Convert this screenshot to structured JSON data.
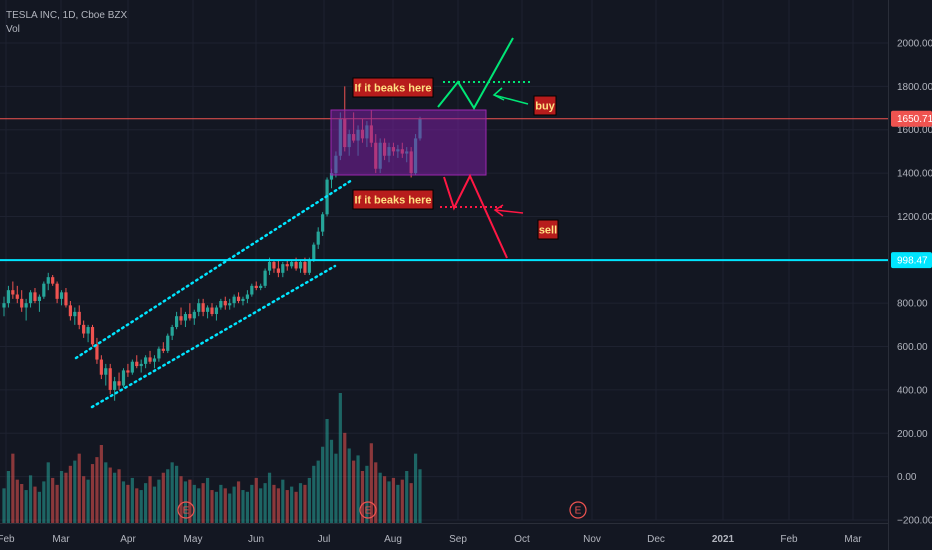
{
  "header": {
    "symbol_line": "TESLA INC, 1D, Cboe BZX",
    "volume_label": "Vol"
  },
  "chart_data": {
    "type": "candlestick",
    "title": "TESLA INC, 1D, Cboe BZX",
    "ylim": [
      -200,
      2200
    ],
    "y_ticks": [
      2000,
      1800,
      1600,
      1400,
      1200,
      1000,
      800,
      600,
      400,
      200,
      0,
      -200
    ],
    "y_tick_labels": [
      "2000.00",
      "1800.00",
      "1600.00",
      "1400.00",
      "1200.00",
      "1000.00",
      "800.00",
      "600.00",
      "400.00",
      "200.00",
      "0.00",
      "−200.00"
    ],
    "x_tick_labels": [
      "Feb",
      "Mar",
      "Apr",
      "May",
      "Jun",
      "Jul",
      "Aug",
      "Sep",
      "Oct",
      "Nov",
      "Dec",
      "2021",
      "Feb",
      "Mar"
    ],
    "price_tags": [
      {
        "value": 1650.71,
        "label": "1650.71",
        "color": "#ef5350"
      },
      {
        "value": 998.47,
        "label": "998.47",
        "color": "#00e5ff"
      }
    ],
    "horizontal_lines": [
      {
        "value": 1650.71,
        "color": "#ef5350"
      },
      {
        "value": 998.47,
        "color": "#00e5ff"
      }
    ],
    "ohlc_sample": [
      {
        "o": 780,
        "h": 830,
        "l": 740,
        "c": 800
      },
      {
        "o": 800,
        "h": 880,
        "l": 780,
        "c": 860
      },
      {
        "o": 860,
        "h": 900,
        "l": 820,
        "c": 840
      },
      {
        "o": 840,
        "h": 880,
        "l": 800,
        "c": 820
      },
      {
        "o": 820,
        "h": 860,
        "l": 760,
        "c": 780
      },
      {
        "o": 780,
        "h": 820,
        "l": 720,
        "c": 800
      },
      {
        "o": 800,
        "h": 860,
        "l": 780,
        "c": 850
      },
      {
        "o": 850,
        "h": 870,
        "l": 800,
        "c": 810
      },
      {
        "o": 810,
        "h": 840,
        "l": 760,
        "c": 830
      },
      {
        "o": 830,
        "h": 900,
        "l": 820,
        "c": 890
      },
      {
        "o": 890,
        "h": 940,
        "l": 860,
        "c": 920
      },
      {
        "o": 920,
        "h": 930,
        "l": 880,
        "c": 890
      },
      {
        "o": 890,
        "h": 900,
        "l": 800,
        "c": 820
      },
      {
        "o": 820,
        "h": 860,
        "l": 790,
        "c": 850
      },
      {
        "o": 850,
        "h": 870,
        "l": 780,
        "c": 790
      },
      {
        "o": 790,
        "h": 810,
        "l": 720,
        "c": 740
      },
      {
        "o": 740,
        "h": 780,
        "l": 700,
        "c": 760
      },
      {
        "o": 760,
        "h": 790,
        "l": 680,
        "c": 700
      },
      {
        "o": 700,
        "h": 720,
        "l": 640,
        "c": 660
      },
      {
        "o": 660,
        "h": 700,
        "l": 620,
        "c": 690
      },
      {
        "o": 690,
        "h": 700,
        "l": 600,
        "c": 610
      },
      {
        "o": 610,
        "h": 640,
        "l": 520,
        "c": 540
      },
      {
        "o": 540,
        "h": 560,
        "l": 450,
        "c": 470
      },
      {
        "o": 470,
        "h": 520,
        "l": 420,
        "c": 500
      },
      {
        "o": 500,
        "h": 520,
        "l": 380,
        "c": 400
      },
      {
        "o": 400,
        "h": 460,
        "l": 350,
        "c": 440
      },
      {
        "o": 440,
        "h": 480,
        "l": 400,
        "c": 420
      },
      {
        "o": 420,
        "h": 500,
        "l": 410,
        "c": 490
      },
      {
        "o": 490,
        "h": 520,
        "l": 460,
        "c": 480
      },
      {
        "o": 480,
        "h": 540,
        "l": 470,
        "c": 530
      },
      {
        "o": 530,
        "h": 560,
        "l": 500,
        "c": 510
      },
      {
        "o": 510,
        "h": 540,
        "l": 480,
        "c": 520
      },
      {
        "o": 520,
        "h": 560,
        "l": 500,
        "c": 550
      },
      {
        "o": 550,
        "h": 580,
        "l": 520,
        "c": 530
      },
      {
        "o": 530,
        "h": 560,
        "l": 500,
        "c": 545
      },
      {
        "o": 545,
        "h": 600,
        "l": 530,
        "c": 590
      },
      {
        "o": 590,
        "h": 620,
        "l": 570,
        "c": 580
      },
      {
        "o": 580,
        "h": 660,
        "l": 570,
        "c": 650
      },
      {
        "o": 650,
        "h": 700,
        "l": 630,
        "c": 690
      },
      {
        "o": 690,
        "h": 760,
        "l": 680,
        "c": 740
      },
      {
        "o": 740,
        "h": 780,
        "l": 700,
        "c": 720
      },
      {
        "o": 720,
        "h": 760,
        "l": 690,
        "c": 750
      },
      {
        "o": 750,
        "h": 800,
        "l": 720,
        "c": 730
      },
      {
        "o": 730,
        "h": 770,
        "l": 700,
        "c": 760
      },
      {
        "o": 760,
        "h": 820,
        "l": 740,
        "c": 800
      },
      {
        "o": 800,
        "h": 820,
        "l": 740,
        "c": 760
      },
      {
        "o": 760,
        "h": 790,
        "l": 730,
        "c": 780
      },
      {
        "o": 780,
        "h": 800,
        "l": 740,
        "c": 750
      },
      {
        "o": 750,
        "h": 790,
        "l": 720,
        "c": 780
      },
      {
        "o": 780,
        "h": 820,
        "l": 770,
        "c": 810
      },
      {
        "o": 810,
        "h": 830,
        "l": 770,
        "c": 790
      },
      {
        "o": 790,
        "h": 820,
        "l": 770,
        "c": 800
      },
      {
        "o": 800,
        "h": 840,
        "l": 780,
        "c": 830
      },
      {
        "o": 830,
        "h": 850,
        "l": 800,
        "c": 810
      },
      {
        "o": 810,
        "h": 830,
        "l": 790,
        "c": 820
      },
      {
        "o": 820,
        "h": 860,
        "l": 800,
        "c": 840
      },
      {
        "o": 840,
        "h": 890,
        "l": 830,
        "c": 880
      },
      {
        "o": 880,
        "h": 900,
        "l": 860,
        "c": 870
      },
      {
        "o": 870,
        "h": 890,
        "l": 860,
        "c": 880
      },
      {
        "o": 880,
        "h": 960,
        "l": 870,
        "c": 950
      },
      {
        "o": 950,
        "h": 1010,
        "l": 930,
        "c": 990
      },
      {
        "o": 990,
        "h": 1000,
        "l": 940,
        "c": 960
      },
      {
        "o": 960,
        "h": 1000,
        "l": 920,
        "c": 940
      },
      {
        "o": 940,
        "h": 990,
        "l": 920,
        "c": 980
      },
      {
        "o": 980,
        "h": 1000,
        "l": 950,
        "c": 970
      },
      {
        "o": 970,
        "h": 1000,
        "l": 960,
        "c": 990
      },
      {
        "o": 990,
        "h": 1010,
        "l": 950,
        "c": 960
      },
      {
        "o": 960,
        "h": 1000,
        "l": 940,
        "c": 990
      },
      {
        "o": 990,
        "h": 1010,
        "l": 930,
        "c": 940
      },
      {
        "o": 940,
        "h": 1010,
        "l": 930,
        "c": 1000
      },
      {
        "o": 1000,
        "h": 1080,
        "l": 990,
        "c": 1070
      },
      {
        "o": 1070,
        "h": 1150,
        "l": 1050,
        "c": 1130
      },
      {
        "o": 1130,
        "h": 1220,
        "l": 1110,
        "c": 1210
      },
      {
        "o": 1210,
        "h": 1380,
        "l": 1200,
        "c": 1370
      },
      {
        "o": 1370,
        "h": 1420,
        "l": 1330,
        "c": 1400
      },
      {
        "o": 1400,
        "h": 1500,
        "l": 1380,
        "c": 1480
      },
      {
        "o": 1480,
        "h": 1680,
        "l": 1460,
        "c": 1650
      },
      {
        "o": 1650,
        "h": 1800,
        "l": 1500,
        "c": 1520
      },
      {
        "o": 1520,
        "h": 1600,
        "l": 1480,
        "c": 1580
      },
      {
        "o": 1580,
        "h": 1680,
        "l": 1540,
        "c": 1550
      },
      {
        "o": 1550,
        "h": 1620,
        "l": 1480,
        "c": 1600
      },
      {
        "o": 1600,
        "h": 1650,
        "l": 1540,
        "c": 1560
      },
      {
        "o": 1560,
        "h": 1640,
        "l": 1520,
        "c": 1620
      },
      {
        "o": 1620,
        "h": 1690,
        "l": 1520,
        "c": 1540
      },
      {
        "o": 1540,
        "h": 1580,
        "l": 1400,
        "c": 1420
      },
      {
        "o": 1420,
        "h": 1560,
        "l": 1400,
        "c": 1540
      },
      {
        "o": 1540,
        "h": 1560,
        "l": 1460,
        "c": 1480
      },
      {
        "o": 1480,
        "h": 1540,
        "l": 1450,
        "c": 1520
      },
      {
        "o": 1520,
        "h": 1540,
        "l": 1480,
        "c": 1500
      },
      {
        "o": 1500,
        "h": 1530,
        "l": 1470,
        "c": 1510
      },
      {
        "o": 1510,
        "h": 1540,
        "l": 1470,
        "c": 1490
      },
      {
        "o": 1490,
        "h": 1520,
        "l": 1450,
        "c": 1500
      },
      {
        "o": 1500,
        "h": 1520,
        "l": 1380,
        "c": 1400
      },
      {
        "o": 1400,
        "h": 1580,
        "l": 1390,
        "c": 1560
      },
      {
        "o": 1560,
        "h": 1660,
        "l": 1550,
        "c": 1650
      }
    ],
    "volume_sample": [
      40,
      60,
      80,
      50,
      45,
      38,
      55,
      42,
      36,
      48,
      70,
      52,
      44,
      60,
      58,
      66,
      72,
      80,
      54,
      50,
      68,
      76,
      90,
      70,
      64,
      58,
      62,
      48,
      44,
      52,
      40,
      38,
      46,
      54,
      42,
      50,
      58,
      62,
      70,
      66,
      54,
      48,
      50,
      44,
      40,
      46,
      52,
      38,
      36,
      44,
      40,
      34,
      42,
      48,
      38,
      36,
      44,
      52,
      40,
      46,
      58,
      44,
      40,
      50,
      38,
      42,
      36,
      46,
      44,
      52,
      66,
      72,
      88,
      120,
      96,
      80,
      150,
      104,
      86,
      72,
      78,
      60,
      66,
      92,
      70,
      58,
      54,
      48,
      52,
      44,
      50,
      60,
      46,
      80,
      62
    ],
    "annotations": [
      {
        "text": "If it beaks here",
        "price": 1800,
        "side": "upper"
      },
      {
        "text": "If it beaks here",
        "price": 1300,
        "side": "lower"
      },
      {
        "text": "buy",
        "price": 1730
      },
      {
        "text": "sell",
        "price": 1190
      }
    ],
    "earnings_marker": "E",
    "colors": {
      "background": "#131722",
      "up": "#26a69a",
      "down": "#ef5350",
      "channel": "#00e5ff",
      "box": "#7b1fa2",
      "buy": "#00e676",
      "sell": "#ff1744",
      "annotation_bg": "#b71c1c",
      "annotation_text": "#ffe082"
    }
  }
}
